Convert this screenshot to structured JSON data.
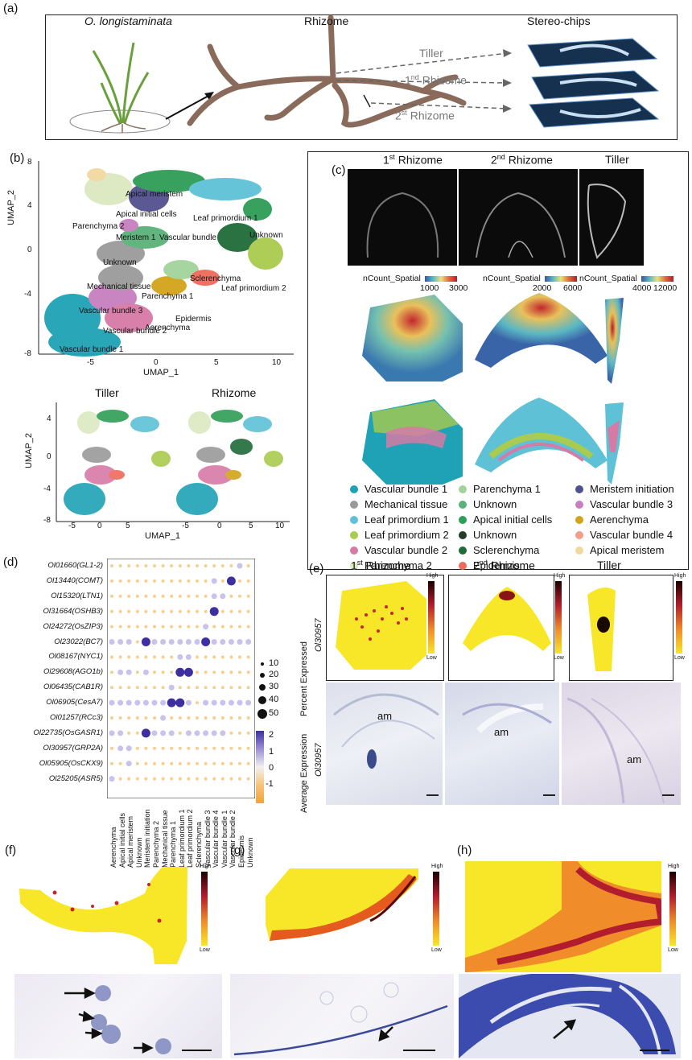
{
  "panels": {
    "a": "(a)",
    "b": "(b)",
    "c": "(c)",
    "d": "(d)",
    "e": "(e)",
    "f": "(f)",
    "g": "(g)",
    "h": "(h)"
  },
  "panel_a": {
    "species": "O. longistaminata",
    "rhizome": "Rhizome",
    "stereo": "Stereo-chips",
    "tiller": "Tiller",
    "rhizome1_num": "1",
    "rhizome1_sup": "nd",
    "rhizome1_word": " Rhizome",
    "rhizome2_num": "2",
    "rhizome2_sup": "st",
    "rhizome2_word": " Rhizome"
  },
  "panel_b": {
    "x_label": "UMAP_1",
    "y_label": "UMAP_2",
    "x_ticks": [
      "-5",
      "0",
      "5",
      "10"
    ],
    "y_ticks": [
      "8",
      "4",
      "0",
      "-4",
      "-8"
    ],
    "cluster_labels": [
      "Apical meristem",
      "Apical initial cells",
      "Leaf primordium 1",
      "Parenchyma 2",
      "Meristem 1",
      "Vascular bundle",
      "Unknown",
      "Unknown",
      "Mechanical tissue",
      "Sclerenchyma",
      "Leaf primordium 2",
      "Parenchyma 1",
      "Vascular bundle 3",
      "Epidermis",
      "Aerenchyma",
      "Vascular bundle 2",
      "Vascular bundle 1"
    ],
    "sub_titles": [
      "Tiller",
      "Rhizome"
    ],
    "sub_x_ticks": [
      "-5",
      "0",
      "5",
      "-5",
      "0",
      "5",
      "10"
    ],
    "sub_y_ticks": [
      "4",
      "0",
      "-4",
      "-8"
    ],
    "sub_x_label": "UMAP_1",
    "sub_y_label": "UMAP_2"
  },
  "panel_c": {
    "titles": [
      {
        "num": "1",
        "sup": "st",
        "word": " Rhizome"
      },
      {
        "num": "2",
        "sup": "nd",
        "word": " Rhizome"
      },
      {
        "num": "",
        "sup": "",
        "word": "Tiller"
      }
    ],
    "scale_title": "nCount_Spatial",
    "scales": [
      {
        "min": "1000",
        "max": "3000"
      },
      {
        "min": "2000",
        "max": "6000"
      },
      {
        "min": "4000",
        "max": "12000"
      }
    ],
    "legend": [
      {
        "label": "Vascular bundle 1",
        "color": "#1fa2b6"
      },
      {
        "label": "Mechanical tissue",
        "color": "#9a9a9a"
      },
      {
        "label": "Leaf primordium 1",
        "color": "#5ec1d6"
      },
      {
        "label": "Leaf primordium 2",
        "color": "#a9cb4f"
      },
      {
        "label": "Vascular bundle 2",
        "color": "#d67aa6"
      },
      {
        "label": "Parenchyma 2",
        "color": "#dce8c0"
      },
      {
        "label": "Parenchyma 1",
        "color": "#a3d39a"
      },
      {
        "label": "Unknown",
        "color": "#5bb27a"
      },
      {
        "label": "Apical initial cells",
        "color": "#2e9d55"
      },
      {
        "label": "Unknown",
        "color": "#243d26"
      },
      {
        "label": "Sclerenchyma",
        "color": "#1f6b38"
      },
      {
        "label": "Epidermis",
        "color": "#ef6a5b"
      },
      {
        "label": "Meristem initiation",
        "color": "#53508f"
      },
      {
        "label": "Vascular bundle 3",
        "color": "#c77fbf"
      },
      {
        "label": "Aerenchyma",
        "color": "#d2a419"
      },
      {
        "label": "Vascular bundle 4",
        "color": "#f39c87"
      },
      {
        "label": "Apical meristem",
        "color": "#f2d9a0"
      }
    ]
  },
  "panel_d": {
    "genes": [
      {
        "id": "Ol01660",
        "name": "GL1-2"
      },
      {
        "id": "Ol13440",
        "name": "COMT"
      },
      {
        "id": "Ol15320",
        "name": "LTN1"
      },
      {
        "id": "Ol31664",
        "name": "OSHB3"
      },
      {
        "id": "Ol24272",
        "name": "OsZIP3"
      },
      {
        "id": "Ol23022",
        "name": "BC7"
      },
      {
        "id": "Ol08167",
        "name": "NYC1"
      },
      {
        "id": "Ol29608",
        "name": "AGO1b"
      },
      {
        "id": "Ol06435",
        "name": "CAB1R"
      },
      {
        "id": "Ol06905",
        "name": "CesA7"
      },
      {
        "id": "Ol01257",
        "name": "RCc3"
      },
      {
        "id": "Ol22735",
        "name": "OsGASR1"
      },
      {
        "id": "Ol30957",
        "name": "GRP2A"
      },
      {
        "id": "Ol05905",
        "name": "OsCKX9"
      },
      {
        "id": "Ol25205",
        "name": "ASR5"
      }
    ],
    "clusters": [
      "Aerenchyma",
      "Apical initial cells",
      "Apical meristem",
      "Unknown",
      "Meristem initiation",
      "Parenchyma 2",
      "Mechanical tissue",
      "Parenchyma 1",
      "Leaf primordium 1",
      "Leaf primordium 2",
      "Sclerenchyma",
      "Vascular bundle 3",
      "Vascular bundle 4",
      "Vascular bundle 1",
      "Vascular bundle 2",
      "Epidermis",
      "Unknown"
    ],
    "size_title": "Percent Expressed",
    "size_values": [
      "10",
      "20",
      "30",
      "40",
      "50"
    ],
    "color_title": "Average Expression",
    "color_ticks": [
      "2",
      "1",
      "0",
      "-1"
    ]
  },
  "panel_e": {
    "titles": [
      {
        "num": "1",
        "sup": "st",
        "word": " Rhizome"
      },
      {
        "num": "2",
        "sup": "nd",
        "word": " Rhizome"
      },
      {
        "num": "",
        "sup": "",
        "word": "Tiller"
      }
    ],
    "gene": "Ol30957",
    "high": "High",
    "low": "Low",
    "am": "am"
  },
  "panel_fgh": {
    "high": "High",
    "low": "Low"
  }
}
